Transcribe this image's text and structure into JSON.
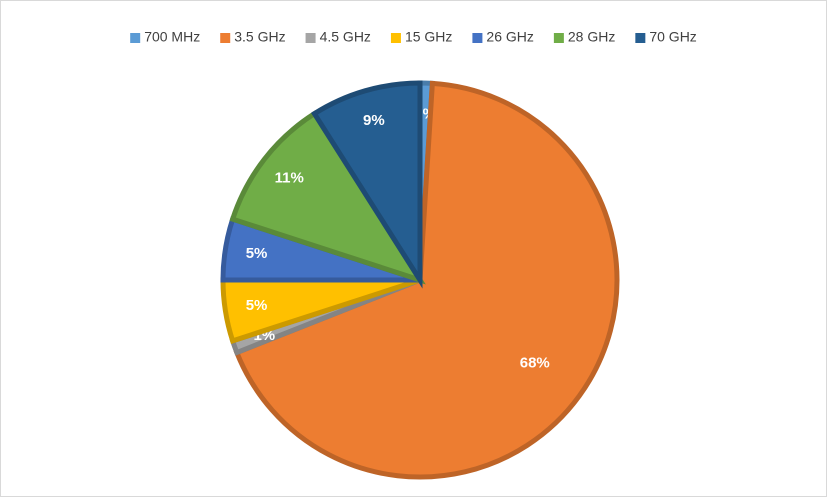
{
  "chart_data": {
    "type": "pie",
    "categories": [
      "700 MHz",
      "3.5 GHz",
      "4.5 GHz",
      "15 GHz",
      "26 GHz",
      "28 GHz",
      "70 GHz"
    ],
    "values": [
      1,
      68,
      1,
      5,
      5,
      11,
      9
    ],
    "value_labels": [
      "1%",
      "68%",
      "1%",
      "5%",
      "5%",
      "11%",
      "9%"
    ],
    "colors": [
      "#5b9bd5",
      "#ed7d31",
      "#a5a5a5",
      "#ffc000",
      "#4472c4",
      "#70ad47",
      "#255e91"
    ],
    "legend": "top"
  }
}
